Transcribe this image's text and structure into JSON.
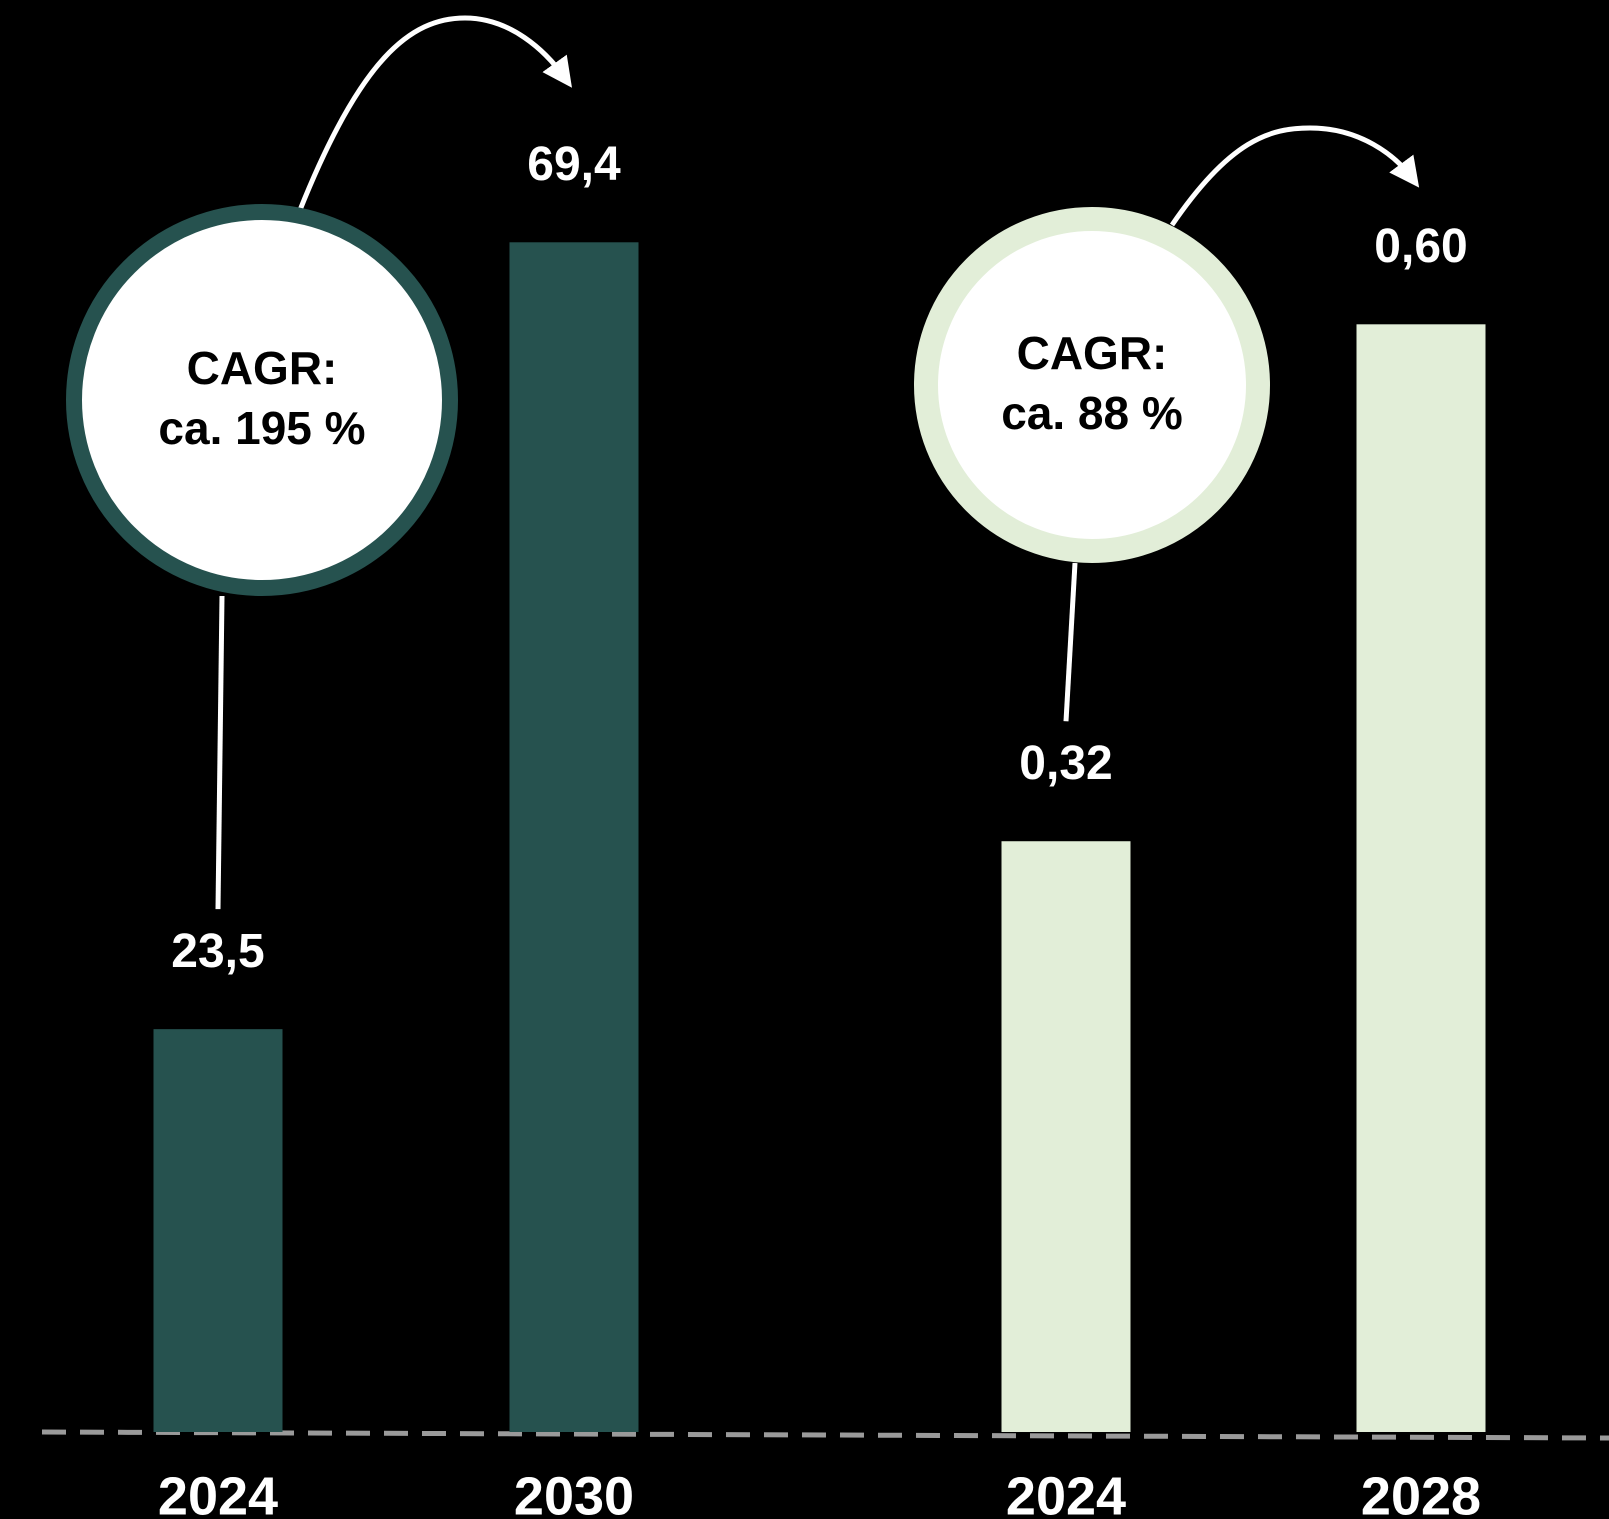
{
  "chart_data": [
    {
      "type": "bar",
      "categories": [
        "2024",
        "2030"
      ],
      "values": [
        23.5,
        69.4
      ],
      "value_labels": [
        "23,5",
        "69,4"
      ],
      "color": "#26524f",
      "ylim": [
        0,
        70
      ],
      "annotations": [
        "CAGR:",
        "ca. 195 %"
      ]
    },
    {
      "type": "bar",
      "categories": [
        "2024",
        "2028"
      ],
      "values": [
        0.32,
        0.6
      ],
      "value_labels": [
        "0,32",
        "0,60"
      ],
      "color": "#e2eed8",
      "ylim": [
        0,
        0.65
      ],
      "annotations": [
        "CAGR:",
        "ca. 88 %"
      ]
    }
  ]
}
